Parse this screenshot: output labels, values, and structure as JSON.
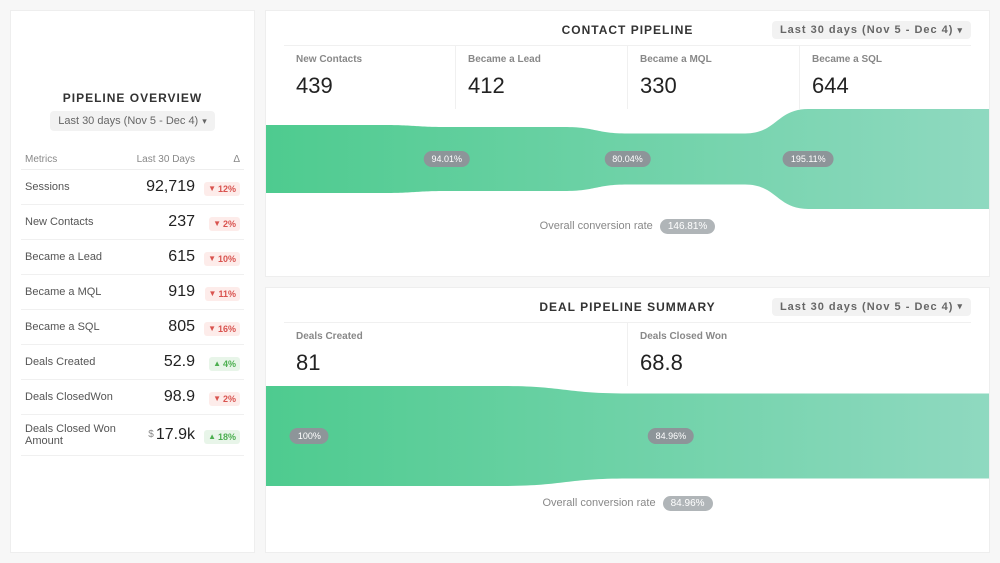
{
  "colors": {
    "funnel_start": "#4ecb8f",
    "funnel_end": "#8fd9c0",
    "badge_bg": "#8d9599",
    "badge_text": "#ffffff",
    "delta_down_bg": "#fdecea",
    "delta_down_fg": "#d9534f",
    "delta_up_bg": "#e8f5e9",
    "delta_up_fg": "#4caf50"
  },
  "date_range_label": "Last 30 days (Nov 5 - Dec 4)",
  "overview": {
    "title": "PIPELINE OVERVIEW",
    "metrics_header": {
      "label": "Metrics",
      "value": "Last 30 Days",
      "delta": "Δ"
    },
    "rows": [
      {
        "label": "Sessions",
        "value": "92,719",
        "delta": "12%",
        "dir": "down"
      },
      {
        "label": "New Contacts",
        "value": "237",
        "delta": "2%",
        "dir": "down"
      },
      {
        "label": "Became a Lead",
        "value": "615",
        "delta": "10%",
        "dir": "down"
      },
      {
        "label": "Became a MQL",
        "value": "919",
        "delta": "11%",
        "dir": "down"
      },
      {
        "label": "Became a SQL",
        "value": "805",
        "delta": "16%",
        "dir": "down"
      },
      {
        "label": "Deals Created",
        "value": "52.9",
        "delta": "4%",
        "dir": "up"
      },
      {
        "label": "Deals ClosedWon",
        "value": "98.9",
        "delta": "2%",
        "dir": "down"
      },
      {
        "label": "Deals Closed Won Amount",
        "value": "17.9k",
        "delta": "18%",
        "dir": "up",
        "prefix": "$"
      }
    ]
  },
  "contact_pipeline": {
    "title": "CONTACT PIPELINE",
    "overall_label": "Overall conversion rate",
    "overall_value": "146.81%",
    "stages": [
      {
        "label": "New Contacts",
        "value": "439",
        "rel": 0.68
      },
      {
        "label": "Became a Lead",
        "value": "412",
        "rel": 0.64,
        "rate": "94.01%"
      },
      {
        "label": "Became a MQL",
        "value": "330",
        "rel": 0.51,
        "rate": "80.04%"
      },
      {
        "label": "Became a SQL",
        "value": "644",
        "rel": 1.0,
        "rate": "195.11%"
      }
    ],
    "viz_height": 100
  },
  "deal_pipeline": {
    "title": "DEAL PIPELINE SUMMARY",
    "overall_label": "Overall conversion rate",
    "overall_value": "84.96%",
    "stages": [
      {
        "label": "Deals Created",
        "value": "81",
        "rel": 1.0,
        "rate": "100%"
      },
      {
        "label": "Deals Closed Won",
        "value": "68.8",
        "rel": 0.85,
        "rate": "84.96%"
      }
    ],
    "viz_height": 100
  }
}
